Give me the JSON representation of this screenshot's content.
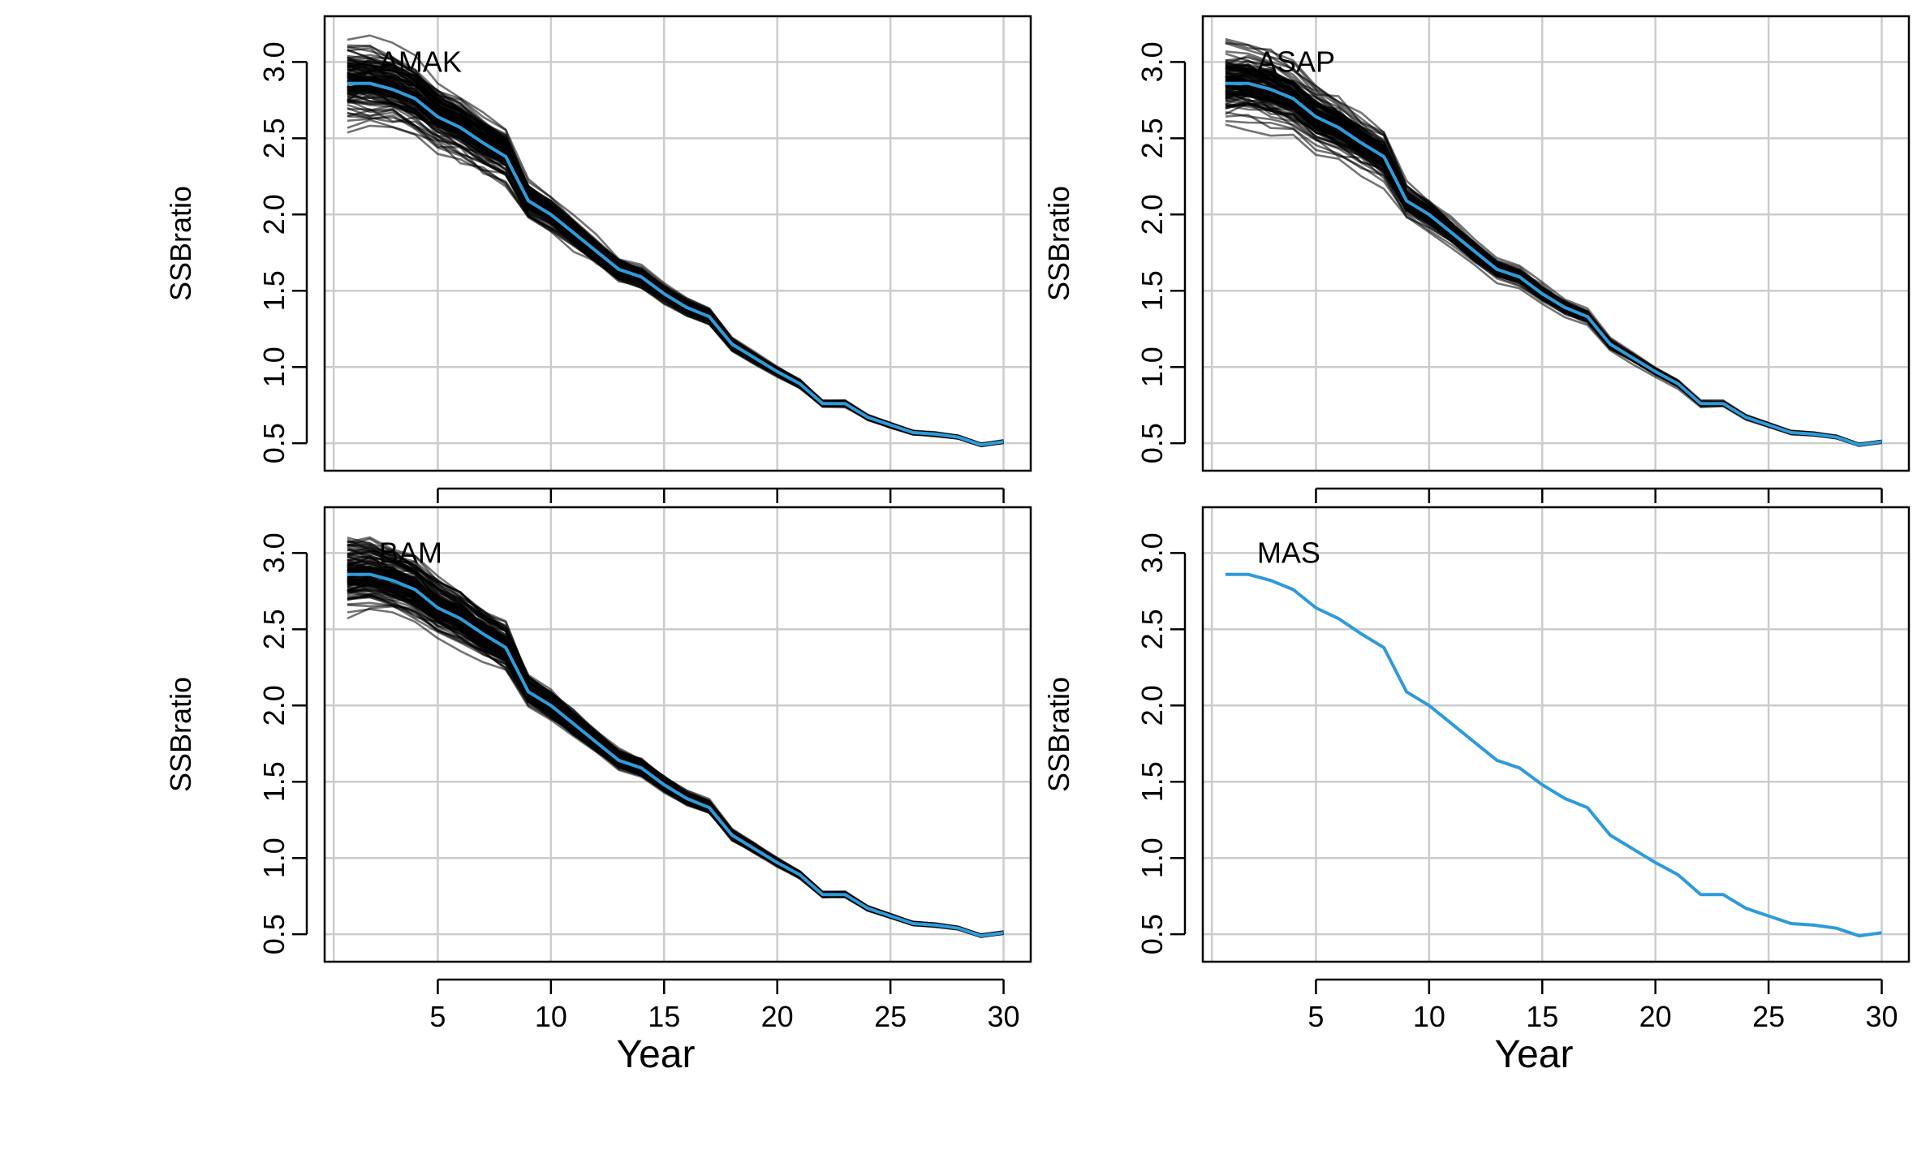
{
  "chart_data": [
    {
      "type": "line",
      "panel_label": "AMAK",
      "xlabel": "",
      "ylabel": "SSBratio",
      "xlim": [
        0,
        31.2
      ],
      "ylim": [
        0.32,
        3.3
      ],
      "xticks": [
        5,
        10,
        15,
        20,
        25,
        30
      ],
      "yticks": [
        0.5,
        1.0,
        1.5,
        2.0,
        2.5,
        3.0
      ],
      "show_x_ticklabels": false,
      "grid": true,
      "ensemble": {
        "color": "#000000",
        "runs": 120,
        "spread_start": 0.18,
        "spread_end": 0.06
      },
      "series": [
        {
          "color": "#2E9BDA",
          "x": [
            1,
            2,
            3,
            4,
            5,
            6,
            7,
            8,
            9,
            10,
            11,
            12,
            13,
            14,
            15,
            16,
            17,
            18,
            19,
            20,
            21,
            22,
            23,
            24,
            25,
            26,
            27,
            28,
            29,
            30
          ],
          "values": [
            2.86,
            2.86,
            2.82,
            2.76,
            2.64,
            2.57,
            2.47,
            2.38,
            2.09,
            2.0,
            1.88,
            1.76,
            1.64,
            1.59,
            1.48,
            1.39,
            1.33,
            1.15,
            1.06,
            0.97,
            0.89,
            0.76,
            0.76,
            0.67,
            0.62,
            0.57,
            0.56,
            0.54,
            0.49,
            0.51
          ]
        }
      ]
    },
    {
      "type": "line",
      "panel_label": "ASAP",
      "xlabel": "",
      "ylabel": "SSBratio",
      "xlim": [
        0,
        31.2
      ],
      "ylim": [
        0.32,
        3.3
      ],
      "xticks": [
        5,
        10,
        15,
        20,
        25,
        30
      ],
      "yticks": [
        0.5,
        1.0,
        1.5,
        2.0,
        2.5,
        3.0
      ],
      "show_x_ticklabels": false,
      "grid": true,
      "ensemble": {
        "color": "#000000",
        "runs": 120,
        "spread_start": 0.16,
        "spread_end": 0.05
      },
      "series": [
        {
          "color": "#2E9BDA",
          "x": [
            1,
            2,
            3,
            4,
            5,
            6,
            7,
            8,
            9,
            10,
            11,
            12,
            13,
            14,
            15,
            16,
            17,
            18,
            19,
            20,
            21,
            22,
            23,
            24,
            25,
            26,
            27,
            28,
            29,
            30
          ],
          "values": [
            2.86,
            2.86,
            2.82,
            2.76,
            2.64,
            2.57,
            2.47,
            2.38,
            2.09,
            2.0,
            1.88,
            1.76,
            1.64,
            1.59,
            1.48,
            1.39,
            1.33,
            1.15,
            1.06,
            0.97,
            0.89,
            0.76,
            0.76,
            0.67,
            0.62,
            0.57,
            0.56,
            0.54,
            0.49,
            0.51
          ]
        }
      ]
    },
    {
      "type": "line",
      "panel_label": "BAM",
      "xlabel": "Year",
      "ylabel": "SSBratio",
      "xlim": [
        0,
        31.2
      ],
      "ylim": [
        0.32,
        3.3
      ],
      "xticks": [
        5,
        10,
        15,
        20,
        25,
        30
      ],
      "yticks": [
        0.5,
        1.0,
        1.5,
        2.0,
        2.5,
        3.0
      ],
      "show_x_ticklabels": true,
      "grid": true,
      "ensemble": {
        "color": "#000000",
        "runs": 120,
        "spread_start": 0.16,
        "spread_end": 0.05
      },
      "series": [
        {
          "color": "#2E9BDA",
          "x": [
            1,
            2,
            3,
            4,
            5,
            6,
            7,
            8,
            9,
            10,
            11,
            12,
            13,
            14,
            15,
            16,
            17,
            18,
            19,
            20,
            21,
            22,
            23,
            24,
            25,
            26,
            27,
            28,
            29,
            30
          ],
          "values": [
            2.86,
            2.86,
            2.82,
            2.76,
            2.64,
            2.57,
            2.47,
            2.38,
            2.09,
            2.0,
            1.88,
            1.76,
            1.64,
            1.59,
            1.48,
            1.39,
            1.33,
            1.15,
            1.06,
            0.97,
            0.89,
            0.76,
            0.76,
            0.67,
            0.62,
            0.57,
            0.56,
            0.54,
            0.49,
            0.51
          ]
        }
      ]
    },
    {
      "type": "line",
      "panel_label": "MAS",
      "xlabel": "Year",
      "ylabel": "SSBratio",
      "xlim": [
        0,
        31.2
      ],
      "ylim": [
        0.32,
        3.3
      ],
      "xticks": [
        5,
        10,
        15,
        20,
        25,
        30
      ],
      "yticks": [
        0.5,
        1.0,
        1.5,
        2.0,
        2.5,
        3.0
      ],
      "show_x_ticklabels": true,
      "grid": true,
      "series": [
        {
          "color": "#2E9BDA",
          "x": [
            1,
            2,
            3,
            4,
            5,
            6,
            7,
            8,
            9,
            10,
            11,
            12,
            13,
            14,
            15,
            16,
            17,
            18,
            19,
            20,
            21,
            22,
            23,
            24,
            25,
            26,
            27,
            28,
            29,
            30
          ],
          "values": [
            2.86,
            2.86,
            2.82,
            2.76,
            2.64,
            2.57,
            2.47,
            2.38,
            2.09,
            2.0,
            1.88,
            1.76,
            1.64,
            1.59,
            1.48,
            1.39,
            1.33,
            1.15,
            1.06,
            0.97,
            0.89,
            0.76,
            0.76,
            0.67,
            0.62,
            0.57,
            0.56,
            0.54,
            0.49,
            0.51
          ]
        }
      ]
    }
  ]
}
